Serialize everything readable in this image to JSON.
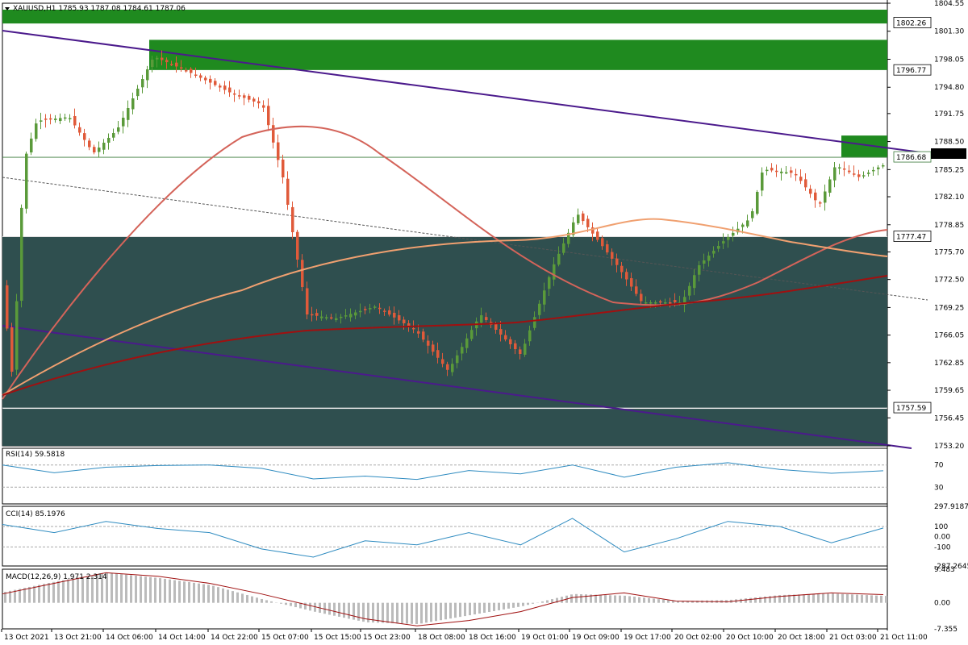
{
  "header": {
    "symbol": "XAUUSD,H1",
    "ohlc": "1785.93 1787.08 1784.61 1787.06"
  },
  "price_axis_ticks": [
    "1804.55",
    "1801.30",
    "1798.05",
    "1794.80",
    "1791.75",
    "1788.50",
    "1785.25",
    "1782.10",
    "1778.85",
    "1775.70",
    "1772.50",
    "1769.25",
    "1766.05",
    "1762.85",
    "1759.65",
    "1756.45",
    "1753.20"
  ],
  "level_labels": [
    "1802.26",
    "1796.77",
    "1786.68",
    "1777.47",
    "1757.59"
  ],
  "current_price": "1787.06",
  "time_labels": [
    "13 Oct 2021",
    "13 Oct 21:00",
    "14 Oct 06:00",
    "14 Oct 14:00",
    "14 Oct 22:00",
    "15 Oct 07:00",
    "15 Oct 15:00",
    "15 Oct 23:00",
    "18 Oct 08:00",
    "18 Oct 16:00",
    "19 Oct 01:00",
    "19 Oct 09:00",
    "19 Oct 17:00",
    "20 Oct 02:00",
    "20 Oct 10:00",
    "20 Oct 18:00",
    "21 Oct 03:00",
    "21 Oct 11:00"
  ],
  "rsi": {
    "label": "RSI(14) 59.5818",
    "ticks": [
      "70",
      "30"
    ]
  },
  "cci": {
    "label": "CCI(14) 85.1976",
    "ticks": [
      "297.9187",
      "100",
      "0.00",
      "-100",
      "-287.2645"
    ]
  },
  "macd": {
    "label": "MACD(12,26,9) 1.971 2.314",
    "ticks": [
      "9.483",
      "0.00",
      "-7.355"
    ]
  },
  "colors": {
    "bull": "#5a9a3a",
    "bear": "#e05a3a",
    "zone_green": "#1f8a1f",
    "zone_dark": "#2f4f4f",
    "trendline": "#4b1a8c",
    "ma_fast": "#d4645a",
    "ma_mid": "#f0a070",
    "ma_slow": "#a01010",
    "indicator_line": "#2e8bc0"
  },
  "chart_data": [
    {
      "type": "candlestick",
      "title": "XAUUSD,H1",
      "ylim": [
        1753.2,
        1804.55
      ],
      "x": [
        "13 Oct 2021",
        "13 Oct 21:00",
        "14 Oct 06:00",
        "14 Oct 14:00",
        "14 Oct 22:00",
        "15 Oct 07:00",
        "15 Oct 15:00",
        "15 Oct 23:00",
        "18 Oct 08:00",
        "18 Oct 16:00",
        "19 Oct 01:00",
        "19 Oct 09:00",
        "19 Oct 17:00",
        "20 Oct 02:00",
        "20 Oct 10:00",
        "20 Oct 18:00",
        "21 Oct 03:00",
        "21 Oct 11:00"
      ],
      "close": [
        1760.0,
        1791.5,
        1796.5,
        1797.5,
        1795.5,
        1786.0,
        1767.5,
        1769.0,
        1762.5,
        1766.5,
        1776.0,
        1779.5,
        1769.5,
        1771.5,
        1779.0,
        1784.5,
        1785.0,
        1787.06
      ],
      "zones": [
        {
          "label": "1802.26",
          "from": 1802.2,
          "to": 1803.8
        },
        {
          "label": "1796.77",
          "from": 1796.8,
          "to": 1800.3
        },
        {
          "label": "1786.68",
          "from": 1786.7,
          "to": 1789.2
        },
        {
          "label": "1777.47",
          "from": 1757.59,
          "to": 1777.47
        },
        {
          "label": "",
          "from": 1753.2,
          "to": 1757.59
        }
      ]
    },
    {
      "type": "line",
      "title": "RSI(14) 59.5818",
      "ylim": [
        0,
        100
      ],
      "values": [
        70,
        56,
        66,
        69,
        70,
        64,
        45,
        50,
        44,
        60,
        54,
        70,
        48,
        66,
        74,
        62,
        55,
        59.58
      ]
    },
    {
      "type": "line",
      "title": "CCI(14) 85.1976",
      "ylim": [
        -287.2645,
        297.9187
      ],
      "values": [
        120,
        40,
        150,
        80,
        40,
        -120,
        -200,
        -40,
        -80,
        40,
        -80,
        180,
        -150,
        -20,
        150,
        100,
        -60,
        85.2
      ]
    },
    {
      "type": "bar",
      "title": "MACD(12,26,9) 1.971 2.314",
      "ylim": [
        -7.355,
        9.483
      ],
      "histogram": [
        3,
        6,
        8.5,
        7,
        5,
        1,
        -2.5,
        -5.5,
        -6,
        -3.5,
        -1,
        2.5,
        2,
        0.5,
        0.8,
        2.2,
        2.6,
        1.97
      ],
      "signal": [
        2.5,
        5.5,
        8.5,
        7.5,
        5.5,
        2.5,
        -1,
        -4.5,
        -6.5,
        -5,
        -2.5,
        1.5,
        2.8,
        0.5,
        0.3,
        1.8,
        2.8,
        2.31
      ]
    }
  ]
}
